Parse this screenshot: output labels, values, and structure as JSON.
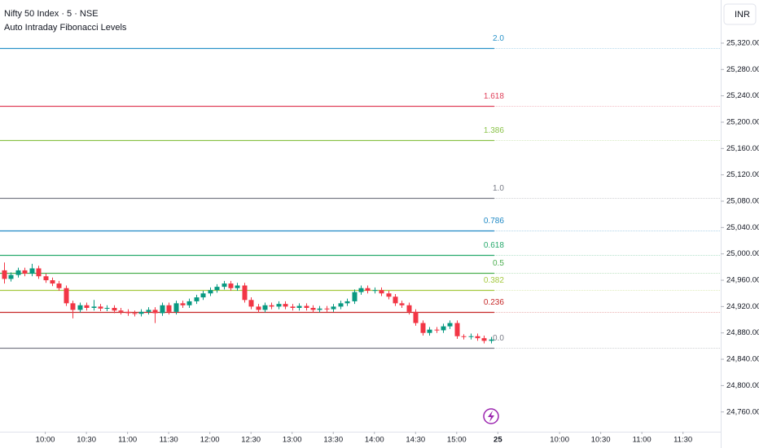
{
  "chart_data": {
    "type": "candlestick",
    "title": "Nifty 50 Index · 5 · NSE",
    "subtitle": "Auto Intraday Fibonacci Levels",
    "currency": "INR",
    "up_color": "#089981",
    "down_color": "#f23645",
    "open": [
      24975,
      24962,
      24968,
      24975,
      24970,
      24978,
      24966,
      24960,
      24955,
      24948,
      24925,
      24915,
      24922,
      24918,
      24920,
      24917,
      24918,
      24914,
      24912,
      24910,
      24909,
      24912,
      24915,
      24910,
      24922,
      24912,
      24925,
      24922,
      24928,
      24934,
      24940,
      24945,
      24950,
      24955,
      24948,
      24952,
      24930,
      24920,
      24915,
      24922,
      24920,
      24924,
      24920,
      24918,
      24921,
      24918,
      24915,
      24917,
      24916,
      24920,
      24925,
      24928,
      24942,
      24948,
      24944,
      24945,
      24940,
      24935,
      24925,
      24922,
      24912,
      24895,
      24880,
      24885,
      24884,
      24890,
      24895,
      24875,
      24874,
      24875,
      24872,
      24868
    ],
    "high": [
      24987,
      24972,
      24979,
      24979,
      24985,
      24982,
      24970,
      24964,
      24959,
      24952,
      24929,
      24926,
      24926,
      24930,
      24924,
      24922,
      24922,
      24918,
      24916,
      24914,
      24916,
      24919,
      24919,
      24926,
      24926,
      24929,
      24929,
      24932,
      24938,
      24944,
      24949,
      24954,
      24959,
      24959,
      24956,
      24956,
      24934,
      24924,
      24926,
      24926,
      24928,
      24928,
      24924,
      24925,
      24925,
      24922,
      24921,
      24921,
      24924,
      24929,
      24932,
      24946,
      24952,
      24952,
      24949,
      24949,
      24944,
      24939,
      24929,
      24926,
      24916,
      24899,
      24889,
      24889,
      24894,
      24899,
      24899,
      24878,
      24879,
      24879,
      24876,
      24874
    ],
    "low": [
      24955,
      24958,
      24964,
      24966,
      24966,
      24962,
      24956,
      24951,
      24944,
      24921,
      24902,
      24911,
      24914,
      24914,
      24913,
      24913,
      24910,
      24908,
      24906,
      24905,
      24905,
      24908,
      24895,
      24906,
      24908,
      24908,
      24918,
      24918,
      24924,
      24930,
      24936,
      24941,
      24946,
      24944,
      24944,
      24926,
      24916,
      24911,
      24911,
      24916,
      24916,
      24916,
      24914,
      24914,
      24914,
      24911,
      24911,
      24912,
      24912,
      24916,
      24921,
      24924,
      24938,
      24940,
      24940,
      24936,
      24931,
      24921,
      24918,
      24908,
      24891,
      24876,
      24876,
      24880,
      24880,
      24886,
      24871,
      24870,
      24870,
      24868,
      24864,
      24864
    ],
    "close": [
      24962,
      24968,
      24975,
      24970,
      24978,
      24966,
      24960,
      24955,
      24948,
      24925,
      24915,
      24922,
      24918,
      24920,
      24917,
      24918,
      24914,
      24912,
      24910,
      24909,
      24912,
      24915,
      24910,
      24922,
      24912,
      24925,
      24922,
      24928,
      24934,
      24940,
      24945,
      24950,
      24955,
      24948,
      24952,
      24930,
      24920,
      24915,
      24922,
      24920,
      24924,
      24920,
      24918,
      24921,
      24918,
      24915,
      24917,
      24916,
      24920,
      24925,
      24928,
      24942,
      24948,
      24944,
      24945,
      24940,
      24935,
      24925,
      24922,
      24912,
      24895,
      24880,
      24885,
      24884,
      24890,
      24895,
      24875,
      24874,
      24875,
      24872,
      24868,
      24870
    ],
    "levels": [
      {
        "label": "2.0",
        "value": 25312,
        "color": "#2a93c9"
      },
      {
        "label": "1.618",
        "value": 25225,
        "color": "#e0405a"
      },
      {
        "label": "1.386",
        "value": 25173,
        "color": "#8bc34a"
      },
      {
        "label": "1.0",
        "value": 25085,
        "color": "#787b86"
      },
      {
        "label": "0.786",
        "value": 25036,
        "color": "#1e88c5"
      },
      {
        "label": "0.618",
        "value": 24998,
        "color": "#26a96c"
      },
      {
        "label": "0.5",
        "value": 24971,
        "color": "#4caf50"
      },
      {
        "label": "0.382",
        "value": 24945,
        "color": "#a5c940"
      },
      {
        "label": "0.236",
        "value": 24912,
        "color": "#c62828"
      },
      {
        "label": "0.0",
        "value": 24858,
        "color": "#787b86"
      }
    ],
    "xlim": [
      -0.6,
      104.5
    ],
    "xticks": [
      {
        "value": 6,
        "label": "10:00"
      },
      {
        "value": 12,
        "label": "10:30"
      },
      {
        "value": 18,
        "label": "11:00"
      },
      {
        "value": 24,
        "label": "11:30"
      },
      {
        "value": 30,
        "label": "12:00"
      },
      {
        "value": 36,
        "label": "12:30"
      },
      {
        "value": 42,
        "label": "13:00"
      },
      {
        "value": 48,
        "label": "13:30"
      },
      {
        "value": 54,
        "label": "14:00"
      },
      {
        "value": 60,
        "label": "14:30"
      },
      {
        "value": 66,
        "label": "15:00"
      },
      {
        "value": 72,
        "label": "25"
      },
      {
        "value": 81,
        "label": "10:00"
      },
      {
        "value": 87,
        "label": "10:30"
      },
      {
        "value": 93,
        "label": "11:00"
      },
      {
        "value": 99,
        "label": "11:30"
      }
    ],
    "ylim": [
      24730,
      25385.5
    ],
    "yticks": [
      {
        "value": 25320,
        "label": "25,320.00"
      },
      {
        "value": 25280,
        "label": "25,280.00"
      },
      {
        "value": 25240,
        "label": "25,240.00"
      },
      {
        "value": 25200,
        "label": "25,200.00"
      },
      {
        "value": 25160,
        "label": "25,160.00"
      },
      {
        "value": 25120,
        "label": "25,120.00"
      },
      {
        "value": 25080,
        "label": "25,080.00"
      },
      {
        "value": 25040,
        "label": "25,040.00"
      },
      {
        "value": 25000,
        "label": "25,000.00"
      },
      {
        "value": 24960,
        "label": "24,960.00"
      },
      {
        "value": 24920,
        "label": "24,920.00"
      },
      {
        "value": 24880,
        "label": "24,880.00"
      },
      {
        "value": 24840,
        "label": "24,840.00"
      },
      {
        "value": 24800,
        "label": "24,800.00"
      },
      {
        "value": 24760,
        "label": "24,760.00"
      }
    ]
  }
}
